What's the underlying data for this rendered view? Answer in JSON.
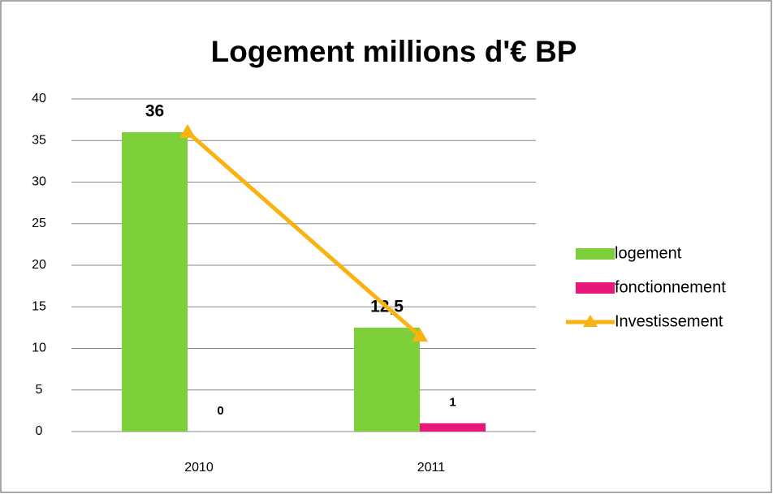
{
  "chart_data": {
    "type": "bar",
    "title": "Logement millions d'€ BP",
    "categories": [
      "2010",
      "2011"
    ],
    "series": [
      {
        "name": "logement",
        "color": "#7ed03b",
        "values": [
          36,
          12.5
        ],
        "value_labels": [
          "36",
          "12,5"
        ]
      },
      {
        "name": "fonctionnement",
        "color": "#e8177a",
        "values": [
          0,
          1
        ]
      },
      {
        "name": "Investissement",
        "type": "line",
        "color": "#f9b20f",
        "values": [
          36,
          11.5
        ]
      }
    ],
    "ylim": [
      0,
      40
    ],
    "yticks": [
      0,
      5,
      10,
      15,
      20,
      25,
      30,
      35,
      40
    ],
    "grid": true,
    "legend": "right"
  }
}
